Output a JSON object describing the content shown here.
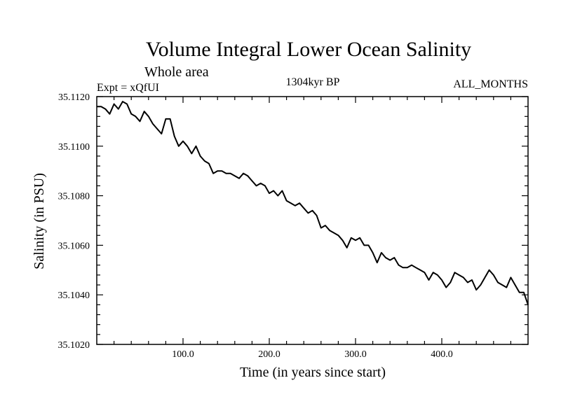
{
  "chart_data": {
    "type": "line",
    "title": "Volume Integral Lower Ocean Salinity",
    "subtitle": "Whole area",
    "experiment": "Expt = xQfUI",
    "period": "1304kyr BP",
    "months": "ALL_MONTHS",
    "xlabel": "Time (in years since start)",
    "ylabel": "Salinity (in PSU)",
    "xlim": [
      0,
      500
    ],
    "ylim": [
      35.102,
      35.112
    ],
    "x_ticks": [
      100,
      200,
      300,
      400
    ],
    "x_tick_labels": [
      "100.0",
      "200.0",
      "300.0",
      "400.0"
    ],
    "y_ticks": [
      35.102,
      35.104,
      35.106,
      35.108,
      35.11,
      35.112
    ],
    "y_tick_labels": [
      "35.1020",
      "35.1040",
      "35.1060",
      "35.1080",
      "35.1100",
      "35.1120"
    ],
    "grid": false,
    "series": [
      {
        "name": "salinity",
        "color": "#000000",
        "x": [
          0,
          5,
          10,
          15,
          20,
          25,
          30,
          35,
          40,
          45,
          50,
          55,
          60,
          65,
          70,
          75,
          80,
          85,
          90,
          95,
          100,
          105,
          110,
          115,
          120,
          125,
          130,
          135,
          140,
          145,
          150,
          155,
          160,
          165,
          170,
          175,
          180,
          185,
          190,
          195,
          200,
          205,
          210,
          215,
          220,
          225,
          230,
          235,
          240,
          245,
          250,
          255,
          260,
          265,
          270,
          275,
          280,
          285,
          290,
          295,
          300,
          305,
          310,
          315,
          320,
          325,
          330,
          335,
          340,
          345,
          350,
          355,
          360,
          365,
          370,
          375,
          380,
          385,
          390,
          395,
          400,
          405,
          410,
          415,
          420,
          425,
          430,
          435,
          440,
          445,
          450,
          455,
          460,
          465,
          470,
          475,
          480,
          485,
          490,
          495,
          500
        ],
        "values": [
          35.1116,
          35.1116,
          35.1115,
          35.1113,
          35.1117,
          35.1115,
          35.1118,
          35.1117,
          35.1113,
          35.1112,
          35.111,
          35.1114,
          35.1112,
          35.1109,
          35.1107,
          35.1105,
          35.1111,
          35.1111,
          35.1104,
          35.11,
          35.1102,
          35.11,
          35.1097,
          35.11,
          35.1096,
          35.1094,
          35.1093,
          35.1089,
          35.109,
          35.109,
          35.1089,
          35.1089,
          35.1088,
          35.1087,
          35.1089,
          35.1088,
          35.1086,
          35.1084,
          35.1085,
          35.1084,
          35.1081,
          35.1082,
          35.108,
          35.1082,
          35.1078,
          35.1077,
          35.1076,
          35.1077,
          35.1075,
          35.1073,
          35.1074,
          35.1072,
          35.1067,
          35.1068,
          35.1066,
          35.1065,
          35.1064,
          35.1062,
          35.1059,
          35.1063,
          35.1062,
          35.1063,
          35.106,
          35.106,
          35.1057,
          35.1053,
          35.1057,
          35.1055,
          35.1054,
          35.1055,
          35.1052,
          35.1051,
          35.1051,
          35.1052,
          35.1051,
          35.105,
          35.1049,
          35.1046,
          35.1049,
          35.1048,
          35.1046,
          35.1043,
          35.1045,
          35.1049,
          35.1048,
          35.1047,
          35.1045,
          35.1046,
          35.1042,
          35.1044,
          35.1047,
          35.105,
          35.1048,
          35.1045,
          35.1044,
          35.1043,
          35.1047,
          35.1044,
          35.1041,
          35.1041,
          35.1036
        ]
      }
    ]
  }
}
